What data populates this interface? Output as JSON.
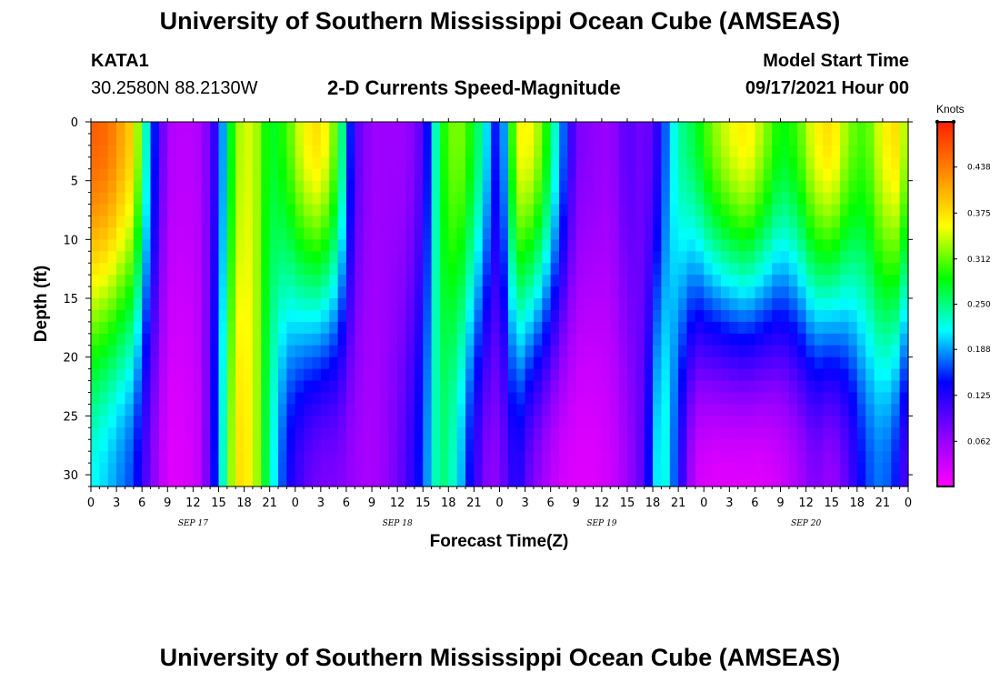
{
  "header": {
    "title": "University of Southern Mississippi Ocean Cube (AMSEAS)",
    "station": "KATA1",
    "coordinates": "30.2580N  88.2130W",
    "subtitle": "2-D Currents Speed-Magnitude",
    "model_start_label": "Model Start Time",
    "model_start_value": "09/17/2021 Hour 00"
  },
  "footer": {
    "title": "University of Southern Mississippi Ocean Cube (AMSEAS)"
  },
  "colorbar": {
    "units": "Knots",
    "ticks": [
      "0.438",
      "0.375",
      "0.312",
      "0.250",
      "0.188",
      "0.125",
      "0.062"
    ],
    "tick_values": [
      0.438,
      0.375,
      0.312,
      0.25,
      0.188,
      0.125,
      0.062
    ],
    "range": [
      0.0,
      0.5
    ],
    "colors": [
      "#ff00ff",
      "#8a00ff",
      "#0000ff",
      "#00ffff",
      "#00ff00",
      "#ffff00",
      "#ff8c00",
      "#ff2000"
    ]
  },
  "chart_data": {
    "type": "heatmap",
    "xlabel": "Forecast Time(Z)",
    "ylabel": "Depth (ft)",
    "x_hours_range": [
      0,
      96
    ],
    "x_tick_labels": [
      "0",
      "3",
      "6",
      "9",
      "12",
      "15",
      "18",
      "21",
      "0",
      "3",
      "6",
      "9",
      "12",
      "15",
      "18",
      "21",
      "0",
      "3",
      "6",
      "9",
      "12",
      "15",
      "18",
      "21",
      "0",
      "3",
      "6",
      "9",
      "12",
      "15",
      "18",
      "21",
      "0"
    ],
    "day_labels": [
      "SEP 17",
      "SEP 18",
      "SEP 19",
      "SEP 20"
    ],
    "y_ticks": [
      0,
      5,
      10,
      15,
      20,
      25,
      30
    ],
    "y_tick_labels": [
      "0",
      "5",
      "10",
      "15",
      "20",
      "25",
      "30"
    ],
    "ylim": [
      0,
      31
    ],
    "y_inverted": true,
    "value_units": "Knots",
    "approx_speed_profile": {
      "hours": [
        0,
        2,
        5,
        7,
        9,
        11,
        13,
        15,
        17,
        19,
        21,
        23,
        25,
        27,
        29,
        31,
        33,
        35,
        37,
        39,
        41,
        43,
        45,
        47,
        48,
        49,
        50,
        51,
        53,
        55,
        57,
        59,
        61,
        63,
        65,
        66,
        67,
        68,
        69,
        71,
        73,
        75,
        77,
        79,
        81,
        83,
        85,
        87,
        89,
        91,
        93,
        95,
        96
      ],
      "surface_speed": [
        0.46,
        0.45,
        0.38,
        0.18,
        0.05,
        0.04,
        0.05,
        0.14,
        0.33,
        0.35,
        0.27,
        0.3,
        0.36,
        0.38,
        0.3,
        0.1,
        0.06,
        0.06,
        0.06,
        0.1,
        0.28,
        0.33,
        0.28,
        0.18,
        0.12,
        0.25,
        0.35,
        0.37,
        0.32,
        0.2,
        0.08,
        0.07,
        0.06,
        0.1,
        0.08,
        0.1,
        0.14,
        0.2,
        0.24,
        0.27,
        0.32,
        0.35,
        0.37,
        0.33,
        0.28,
        0.3,
        0.36,
        0.38,
        0.32,
        0.3,
        0.36,
        0.38,
        0.3
      ],
      "depth_30ft_speed": [
        0.22,
        0.2,
        0.16,
        0.08,
        0.02,
        0.02,
        0.04,
        0.18,
        0.38,
        0.36,
        0.24,
        0.14,
        0.1,
        0.08,
        0.08,
        0.06,
        0.05,
        0.07,
        0.1,
        0.16,
        0.26,
        0.22,
        0.12,
        0.06,
        0.08,
        0.1,
        0.14,
        0.1,
        0.06,
        0.03,
        0.02,
        0.02,
        0.03,
        0.06,
        0.1,
        0.18,
        0.24,
        0.2,
        0.14,
        0.03,
        0.02,
        0.02,
        0.02,
        0.02,
        0.03,
        0.05,
        0.08,
        0.06,
        0.1,
        0.16,
        0.18,
        0.14,
        0.08
      ]
    }
  }
}
